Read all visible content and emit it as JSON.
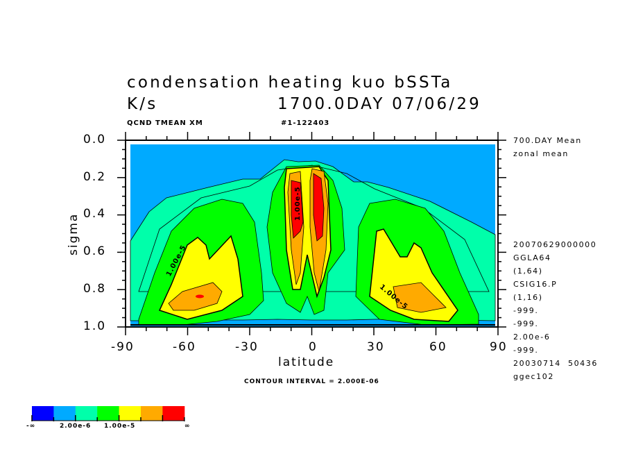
{
  "chart_data": {
    "type": "contour",
    "title": "condensation heating kuo bSSTa",
    "units": "K/s",
    "time_label": "1700.0DAY 07/06/29",
    "variable_label": "QCND TMEAN XM",
    "run_label": "#1-122403",
    "xlabel": "latitude",
    "ylabel": "sigma",
    "xlim": [
      -90,
      90
    ],
    "ylim": [
      1.0,
      0.0
    ],
    "x_ticks": [
      "-90",
      "-60",
      "-30",
      "0",
      "30",
      "60",
      "90"
    ],
    "y_ticks": [
      "0.0",
      "0.2",
      "0.4",
      "0.6",
      "0.8",
      "1.0"
    ],
    "contour_interval": "CONTOUR INTERVAL = 2.000E-06",
    "contour_labels": [
      "1.00e-5",
      "1.00e-5",
      "1.00e-5",
      "1.00e-5"
    ],
    "colorbar": {
      "colors": [
        "#0000ff",
        "#00aaff",
        "#00ffaa",
        "#00ff00",
        "#ffff00",
        "#ffaa00",
        "#ff0000"
      ],
      "labels": [
        "-∞",
        "2.00e-6",
        "1.00e-5",
        "∞"
      ]
    },
    "side_info": [
      "700.DAY Mean",
      "zonal mean",
      "20070629000000",
      "GGLA64",
      "(1,64)",
      "CSIG16.P",
      "(1,16)",
      "-999.",
      "-999.",
      "2.00e-6",
      "-999.",
      "20030714  50436",
      "ggec102"
    ]
  }
}
